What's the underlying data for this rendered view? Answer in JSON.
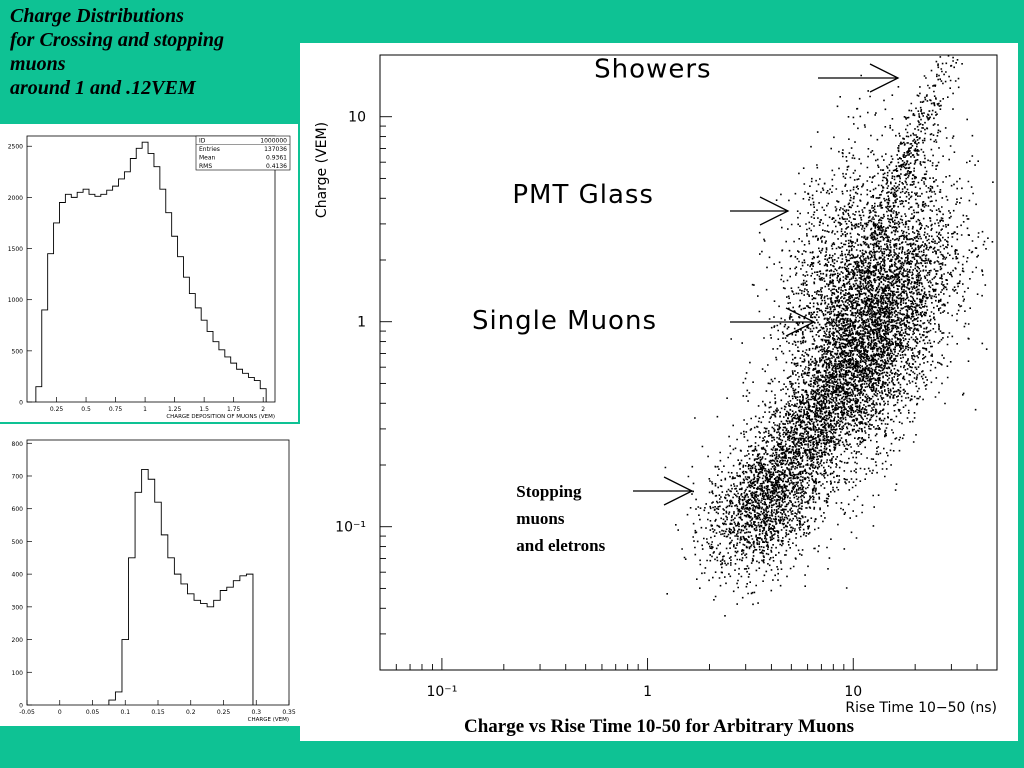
{
  "slide": {
    "title_lines": [
      "Charge Distributions",
      "for Crossing and stopping",
      "muons",
      "around 1 and .12VEM"
    ],
    "bg_color": "#0ec294"
  },
  "chart_data": [
    {
      "type": "bar",
      "subtype": "histogram",
      "xlabel": "CHARGE DEPOSITION OF MUONS (VEM)",
      "xlim": [
        0,
        2.1
      ],
      "ylim": [
        0,
        2600
      ],
      "xticks": [
        "0.25",
        "0.5",
        "0.75",
        "1",
        "1.25",
        "1.5",
        "1.75",
        "2"
      ],
      "xtick_values": [
        0.25,
        0.5,
        0.75,
        1,
        1.25,
        1.5,
        1.75,
        2
      ],
      "yticks": [
        "0",
        "500",
        "1000",
        "1500",
        "2000",
        "2500"
      ],
      "ytick_values": [
        0,
        500,
        1000,
        1500,
        2000,
        2500
      ],
      "stats": [
        {
          "label": "ID",
          "value": "1000000"
        },
        {
          "label": "Entries",
          "value": "137036"
        },
        {
          "label": "Mean",
          "value": "0.9361"
        },
        {
          "label": "RMS",
          "value": "0.4136"
        }
      ],
      "x": [
        0.1,
        0.15,
        0.2,
        0.25,
        0.3,
        0.35,
        0.4,
        0.45,
        0.5,
        0.55,
        0.6,
        0.65,
        0.7,
        0.75,
        0.8,
        0.85,
        0.9,
        0.95,
        1.0,
        1.05,
        1.1,
        1.15,
        1.2,
        1.25,
        1.3,
        1.35,
        1.4,
        1.45,
        1.5,
        1.55,
        1.6,
        1.65,
        1.7,
        1.75,
        1.8,
        1.85,
        1.9,
        1.95,
        2.0
      ],
      "values": [
        150,
        900,
        1450,
        1750,
        1950,
        2030,
        2000,
        2050,
        2080,
        2030,
        2010,
        2030,
        2070,
        2110,
        2180,
        2250,
        2380,
        2480,
        2540,
        2430,
        2300,
        2080,
        1850,
        1620,
        1420,
        1220,
        1060,
        920,
        800,
        690,
        590,
        510,
        440,
        380,
        320,
        280,
        240,
        210,
        130
      ]
    },
    {
      "type": "bar",
      "subtype": "histogram",
      "xlabel": "CHARGE (VEM)",
      "xlim": [
        -0.05,
        0.35
      ],
      "ylim": [
        0,
        810
      ],
      "xticks": [
        "-0.05",
        "0",
        "0.05",
        "0.1",
        "0.15",
        "0.2",
        "0.25",
        "0.3",
        "0.35"
      ],
      "xtick_values": [
        -0.05,
        0,
        0.05,
        0.1,
        0.15,
        0.2,
        0.25,
        0.3,
        0.35
      ],
      "yticks": [
        "0",
        "100",
        "200",
        "300",
        "400",
        "500",
        "600",
        "700",
        "800"
      ],
      "ytick_values": [
        0,
        100,
        200,
        300,
        400,
        500,
        600,
        700,
        800
      ],
      "x": [
        0.08,
        0.09,
        0.1,
        0.11,
        0.12,
        0.13,
        0.14,
        0.15,
        0.16,
        0.17,
        0.18,
        0.19,
        0.2,
        0.21,
        0.22,
        0.23,
        0.24,
        0.25,
        0.26,
        0.27,
        0.28,
        0.29
      ],
      "values": [
        15,
        40,
        200,
        450,
        650,
        720,
        690,
        620,
        520,
        450,
        400,
        370,
        340,
        320,
        310,
        300,
        320,
        350,
        360,
        380,
        395,
        400
      ]
    },
    {
      "type": "scatter",
      "title": "Charge vs Rise Time 10-50 for Arbitrary Muons",
      "xlabel": "Rise Time 10−50 (ns)",
      "ylabel": "Charge (VEM)",
      "xscale": "log",
      "yscale": "log",
      "xlim": [
        0.05,
        50
      ],
      "ylim": [
        0.02,
        20
      ],
      "xticks": [
        "10⁻¹",
        "1",
        "10"
      ],
      "xtick_values": [
        0.1,
        1,
        10
      ],
      "yticks": [
        "10",
        "1",
        "10⁻¹"
      ],
      "ytick_values": [
        10,
        1,
        0.1
      ],
      "clusters": [
        {
          "name": "single-muons",
          "x": 12,
          "y": 0.9,
          "sx": 0.2,
          "sy": 0.34,
          "rho": 0.55,
          "n": 5500
        },
        {
          "name": "stopping",
          "x": 3.6,
          "y": 0.13,
          "sx": 0.14,
          "sy": 0.18,
          "rho": 0.3,
          "n": 1600
        },
        {
          "name": "bridge",
          "x": 6,
          "y": 0.3,
          "sx": 0.15,
          "sy": 0.22,
          "rho": 0.75,
          "n": 1200
        },
        {
          "name": "pmt-glass",
          "x": 8,
          "y": 2.3,
          "sx": 0.16,
          "sy": 0.3,
          "rho": 0.5,
          "n": 700
        },
        {
          "name": "showers",
          "x": 18,
          "y": 6,
          "sx": 0.12,
          "sy": 0.28,
          "rho": 0.92,
          "n": 500
        }
      ],
      "annotations": [
        {
          "text": "Showers",
          "x": 0.55,
          "y": 15.5
        },
        {
          "text": "PMT Glass",
          "x": 0.22,
          "y": 3.8
        },
        {
          "text": "Single Muons",
          "x": 0.14,
          "y": 0.92
        },
        {
          "text": "Stopping muons and eletrons",
          "lines": [
            "Stopping",
            "muons",
            "and eletrons"
          ],
          "x": 0.23,
          "y": 0.14
        }
      ]
    }
  ]
}
